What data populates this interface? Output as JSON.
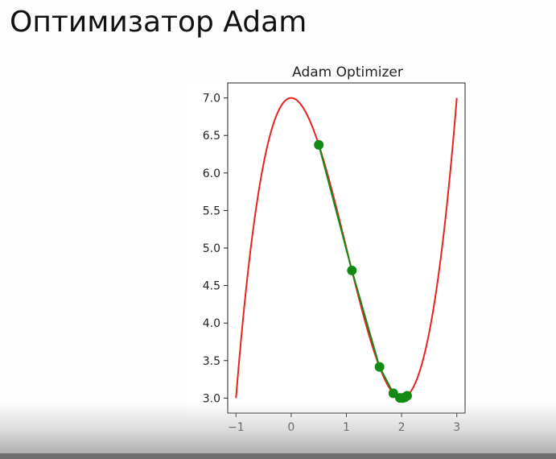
{
  "slide": {
    "title": "Оптимизатор Adam"
  },
  "chart_data": {
    "type": "line",
    "title": "Adam Optimizer",
    "xlabel": "",
    "ylabel": "",
    "xlim": [
      -1.15,
      3.15
    ],
    "ylim": [
      2.8,
      7.2
    ],
    "x_ticks": [
      -1,
      0,
      1,
      2,
      3
    ],
    "x_tick_labels": [
      "−1",
      "0",
      "1",
      "2",
      "3"
    ],
    "y_ticks": [
      3.0,
      3.5,
      4.0,
      4.5,
      5.0,
      5.5,
      6.0,
      6.5,
      7.0
    ],
    "y_tick_labels": [
      "3.0",
      "3.5",
      "4.0",
      "4.5",
      "5.0",
      "5.5",
      "6.0",
      "6.5",
      "7.0"
    ],
    "grid": false,
    "legend": "none",
    "curve": {
      "function": "x^3 - 3x^2 + 7",
      "x_range": [
        -1,
        3
      ],
      "color": "#e8231f"
    },
    "steps": {
      "color": "#138a13",
      "points": [
        {
          "x": 0.5,
          "y": 6.375
        },
        {
          "x": 1.1,
          "y": 4.701
        },
        {
          "x": 1.6,
          "y": 3.416
        },
        {
          "x": 1.85,
          "y": 3.064
        },
        {
          "x": 1.97,
          "y": 3.003
        },
        {
          "x": 2.02,
          "y": 3.001
        },
        {
          "x": 2.06,
          "y": 3.011
        },
        {
          "x": 2.1,
          "y": 3.031
        }
      ]
    }
  }
}
